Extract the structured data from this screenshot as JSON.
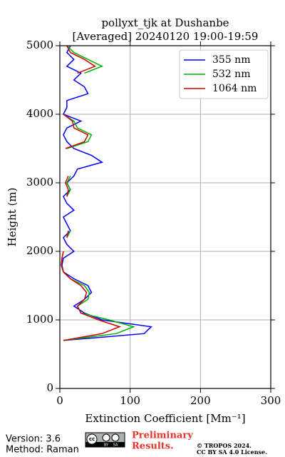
{
  "chart_data": {
    "type": "line",
    "title": [
      "pollyxt_tjk at Dushanbe",
      "[Averaged] 20240120 19:00-19:59"
    ],
    "xlabel": "Extinction Coefficient [Mm⁻¹]",
    "ylabel": "Height (m)",
    "y": [
      700,
      800,
      900,
      1000,
      1100,
      1200,
      1300,
      1400,
      1500,
      1600,
      1700,
      1800,
      1900,
      2000,
      2100,
      2200,
      2300,
      2400,
      2500,
      2600,
      2700,
      2800,
      2900,
      3000,
      3100,
      3200,
      3300,
      3400,
      3500,
      3600,
      3700,
      3800,
      3900,
      4000,
      4100,
      4200,
      4300,
      4400,
      4500,
      4600,
      4700,
      4800,
      4900,
      5000
    ],
    "series": [
      {
        "name": "355 nm",
        "color": "#0000ff",
        "values": [
          5,
          120,
          130,
          60,
          35,
          20,
          35,
          45,
          40,
          20,
          5,
          3,
          5,
          20,
          10,
          5,
          15,
          10,
          5,
          20,
          10,
          5,
          15,
          10,
          20,
          25,
          60,
          45,
          20,
          10,
          5,
          10,
          30,
          5,
          10,
          10,
          40,
          35,
          20,
          30,
          10,
          20,
          10,
          15
        ]
      },
      {
        "name": "532 nm",
        "color": "#00b000",
        "values": [
          5,
          80,
          105,
          70,
          30,
          25,
          40,
          42,
          35,
          15,
          5,
          2,
          3,
          5,
          null,
          10,
          15,
          null,
          null,
          null,
          null,
          10,
          15,
          10,
          15,
          null,
          null,
          null,
          10,
          40,
          45,
          25,
          20,
          5,
          null,
          null,
          null,
          null,
          null,
          35,
          60,
          40,
          20,
          10
        ]
      },
      {
        "name": "1064 nm",
        "color": "#d00000",
        "values": [
          5,
          60,
          85,
          55,
          30,
          25,
          35,
          38,
          30,
          15,
          5,
          2,
          3,
          5,
          null,
          10,
          12,
          null,
          null,
          null,
          null,
          10,
          12,
          8,
          12,
          null,
          null,
          null,
          8,
          35,
          40,
          20,
          18,
          5,
          null,
          null,
          null,
          null,
          null,
          25,
          50,
          35,
          15,
          10
        ]
      }
    ],
    "xlim": [
      0,
      300
    ],
    "xticks": [
      0,
      100,
      200,
      300
    ],
    "ylim": [
      0,
      5000
    ],
    "yticks": [
      0,
      1000,
      2000,
      3000,
      4000,
      5000
    ],
    "grid": true,
    "legend": "upper right"
  },
  "footer": {
    "version": "Version: 3.6",
    "method": "Method: Raman",
    "badge": [
      "cc",
      "BY",
      "SA"
    ],
    "preliminary": [
      "Preliminary",
      "Results."
    ],
    "copyright": [
      "© TROPOS 2024.",
      "CC BY SA 4.0 License."
    ]
  }
}
